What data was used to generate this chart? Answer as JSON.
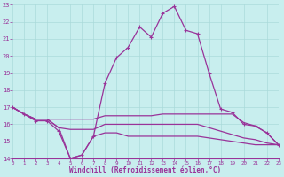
{
  "xlabel": "Windchill (Refroidissement éolien,°C)",
  "xlim": [
    0,
    23
  ],
  "ylim": [
    14,
    23
  ],
  "yticks": [
    14,
    15,
    16,
    17,
    18,
    19,
    20,
    21,
    22,
    23
  ],
  "xticks": [
    0,
    1,
    2,
    3,
    4,
    5,
    6,
    7,
    8,
    9,
    10,
    11,
    12,
    13,
    14,
    15,
    16,
    17,
    18,
    19,
    20,
    21,
    22,
    23
  ],
  "bg_color": "#c8eeee",
  "line_color": "#993399",
  "grid_color": "#aadada",
  "series": [
    [
      17.0,
      16.6,
      16.2,
      16.2,
      15.6,
      14.0,
      14.2,
      15.3,
      18.4,
      19.9,
      20.5,
      21.7,
      21.1,
      22.5,
      22.9,
      21.5,
      21.3,
      19.0,
      16.9,
      16.7,
      16.0,
      15.9,
      15.5,
      14.8
    ],
    [
      17.0,
      16.6,
      16.3,
      16.3,
      16.3,
      16.3,
      16.3,
      16.3,
      16.5,
      16.5,
      16.5,
      16.5,
      16.5,
      16.6,
      16.6,
      16.6,
      16.6,
      16.6,
      16.6,
      16.6,
      16.1,
      15.9,
      15.5,
      14.8
    ],
    [
      17.0,
      16.6,
      16.3,
      16.3,
      15.8,
      15.7,
      15.7,
      15.7,
      16.0,
      16.0,
      16.0,
      16.0,
      16.0,
      16.0,
      16.0,
      16.0,
      16.0,
      15.8,
      15.6,
      15.4,
      15.2,
      15.1,
      14.9,
      14.8
    ],
    [
      17.0,
      16.6,
      16.3,
      16.3,
      15.8,
      14.0,
      14.2,
      15.3,
      15.5,
      15.5,
      15.3,
      15.3,
      15.3,
      15.3,
      15.3,
      15.3,
      15.3,
      15.2,
      15.1,
      15.0,
      14.9,
      14.8,
      14.8,
      14.8
    ]
  ]
}
